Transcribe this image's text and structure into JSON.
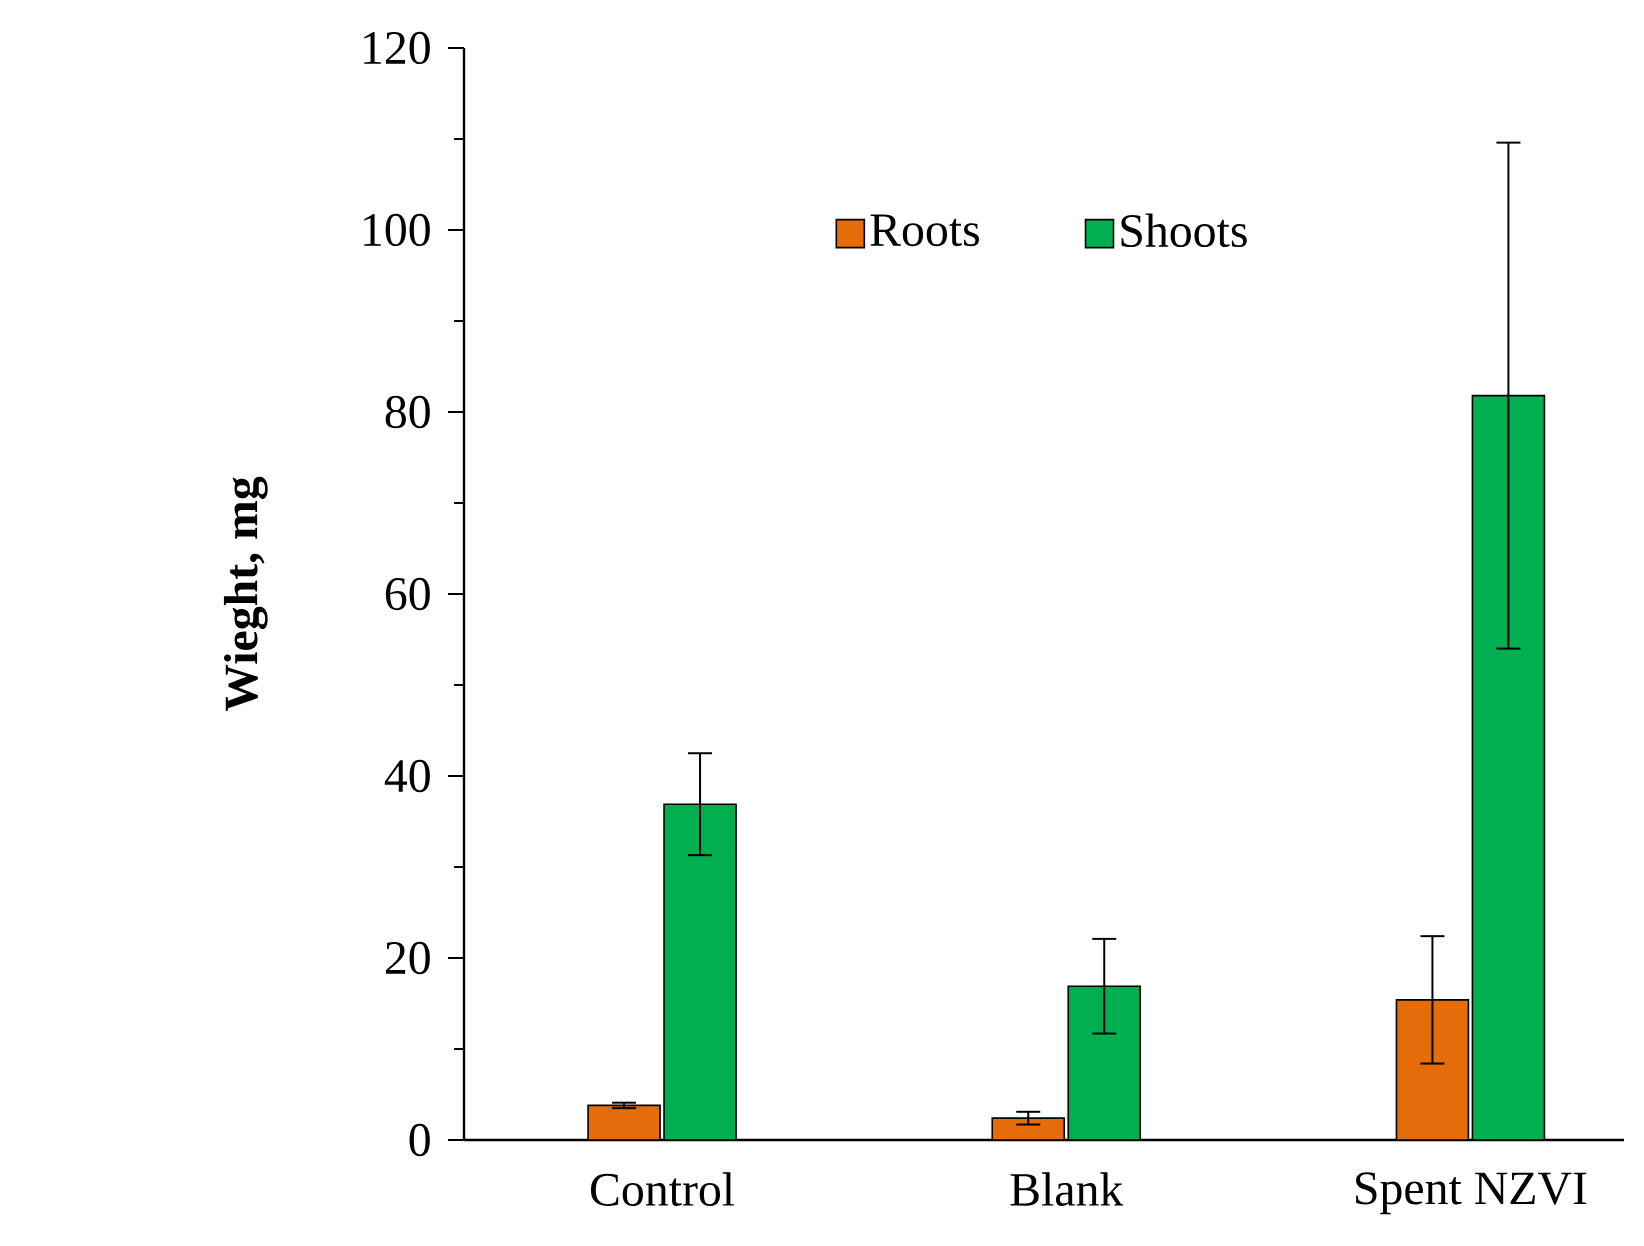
{
  "chart_data": {
    "type": "bar",
    "ylabel": "**Wieght, mg**",
    "categories": [
      "Control",
      "Blank",
      "Spent NZVI"
    ],
    "series": [
      {
        "name": "Roots",
        "color": "#e46c0a",
        "values": [
          3.8,
          2.4,
          15.4
        ],
        "errors": [
          0.3,
          0.7,
          7.0
        ]
      },
      {
        "name": "Shoots",
        "color": "#00b050",
        "values": [
          36.9,
          16.9,
          81.8
        ],
        "errors": [
          5.6,
          5.2,
          27.8
        ]
      }
    ],
    "ylim": [
      0,
      120
    ],
    "yticks": [
      0,
      20,
      40,
      60,
      80,
      100,
      120
    ],
    "legend": "top",
    "grid": false
  }
}
